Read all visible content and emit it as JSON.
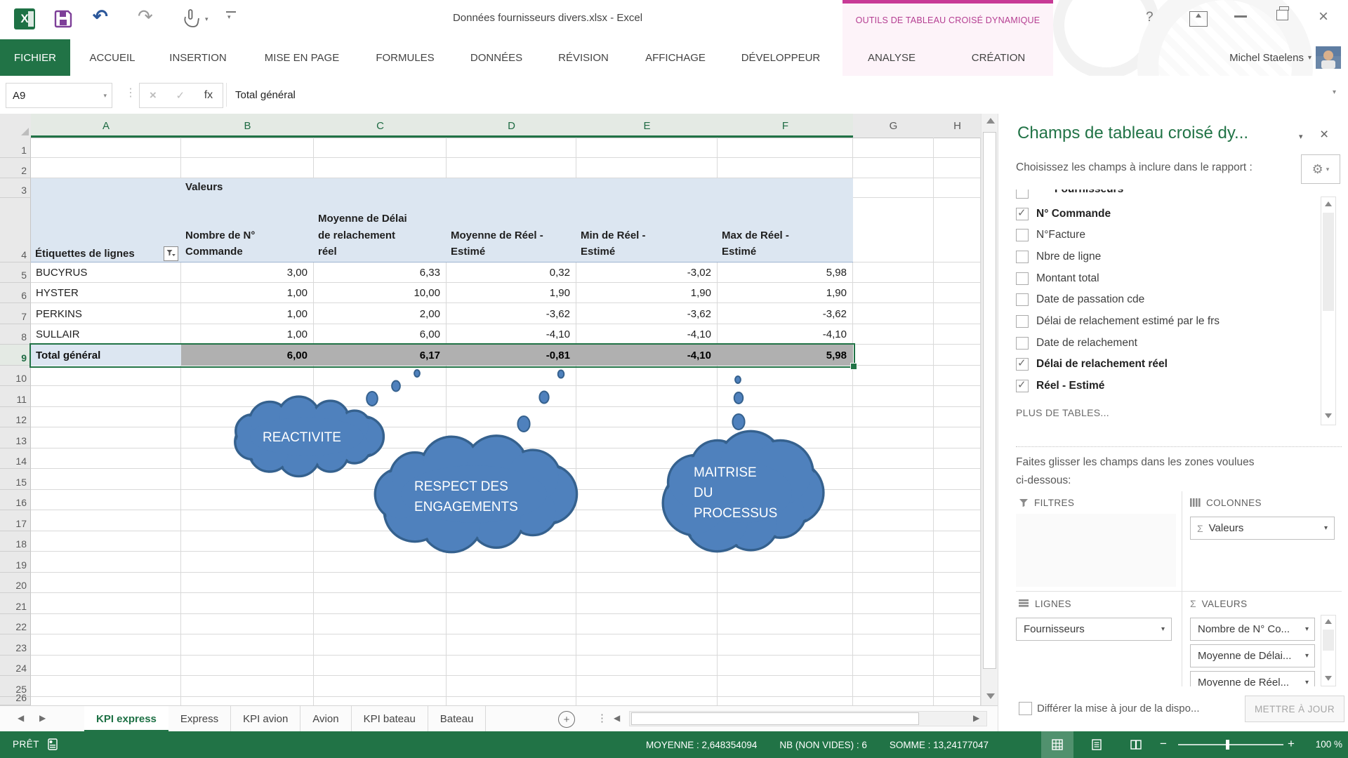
{
  "title_bar": {
    "title": "Données fournisseurs divers.xlsx - Excel",
    "help": "?",
    "user_name": "Michel Staelens"
  },
  "ribbon": {
    "file_tab": "FICHIER",
    "tabs": [
      "ACCUEIL",
      "INSERTION",
      "MISE EN PAGE",
      "FORMULES",
      "DONNÉES",
      "RÉVISION",
      "AFFICHAGE",
      "DÉVELOPPEUR"
    ],
    "contextual_title": "OUTILS DE TABLEAU CROISÉ DYNAMIQUE",
    "contextual_tabs": [
      "ANALYSE",
      "CRÉATION"
    ]
  },
  "formula_bar": {
    "name_box": "A9",
    "fx": "fx",
    "value": "Total général"
  },
  "grid": {
    "columns": [
      "A",
      "B",
      "C",
      "D",
      "E",
      "F",
      "G",
      "H"
    ],
    "selected_columns": [
      "A",
      "B",
      "C",
      "D",
      "E",
      "F"
    ],
    "row_count": 26,
    "selected_row": 9
  },
  "pivot": {
    "values_caption": "Valeurs",
    "row_label_header": "Étiquettes de lignes",
    "column_headers": [
      "Nombre de N°\nCommande",
      "Moyenne de Délai\nde relachement\nréel",
      "Moyenne de Réel -\nEstimé",
      "Min de Réel -\nEstimé",
      "Max de Réel -\nEstimé"
    ],
    "rows": [
      {
        "label": "BUCYRUS",
        "values": [
          "3,00",
          "6,33",
          "0,32",
          "-3,02",
          "5,98"
        ]
      },
      {
        "label": "HYSTER",
        "values": [
          "1,00",
          "10,00",
          "1,90",
          "1,90",
          "1,90"
        ]
      },
      {
        "label": "PERKINS",
        "values": [
          "1,00",
          "2,00",
          "-3,62",
          "-3,62",
          "-3,62"
        ]
      },
      {
        "label": "SULLAIR",
        "values": [
          "1,00",
          "6,00",
          "-4,10",
          "-4,10",
          "-4,10"
        ]
      }
    ],
    "total_row": {
      "label": "Total général",
      "values": [
        "6,00",
        "6,17",
        "-0,81",
        "-4,10",
        "5,98"
      ]
    }
  },
  "clouds": [
    {
      "lines": [
        "REACTIVITE"
      ]
    },
    {
      "lines": [
        "RESPECT DES",
        "ENGAGEMENTS"
      ]
    },
    {
      "lines": [
        "MAITRISE",
        "DU",
        "PROCESSUS"
      ]
    }
  ],
  "fields_panel": {
    "title": "Champs de tableau croisé dy...",
    "prompt": "Choisissez les champs à inclure dans le rapport :",
    "fields": [
      {
        "label": "Fournisseurs",
        "checked": true
      },
      {
        "label": "N° Commande",
        "checked": true
      },
      {
        "label": "N°Facture",
        "checked": false
      },
      {
        "label": "Nbre de ligne",
        "checked": false
      },
      {
        "label": "Montant total",
        "checked": false
      },
      {
        "label": "Date de passation cde",
        "checked": false
      },
      {
        "label": "Délai de relachement estimé par le frs",
        "checked": false
      },
      {
        "label": "Date de relachement",
        "checked": false
      },
      {
        "label": "Délai de relachement  réel",
        "checked": true
      },
      {
        "label": "Réel - Estimé",
        "checked": true
      }
    ],
    "more_tables": "PLUS DE TABLES...",
    "drag_hint_line1": "Faites glisser les champs dans les zones voulues",
    "drag_hint_line2": "ci-dessous:",
    "zones": {
      "filtres": {
        "label": "FILTRES",
        "items": []
      },
      "colonnes": {
        "label": "COLONNES",
        "items": [
          "Valeurs"
        ]
      },
      "lignes": {
        "label": "LIGNES",
        "items": [
          "Fournisseurs"
        ]
      },
      "valeurs": {
        "label": "VALEURS",
        "items": [
          "Nombre de N° Co...",
          "Moyenne de Délai...",
          "Moyenne de Réel..."
        ]
      }
    },
    "defer_label": "Différer la mise à jour de la dispo...",
    "update_button": "METTRE À JOUR"
  },
  "sheet_tabs": {
    "tabs": [
      "KPI express",
      "Express",
      "KPI avion",
      "Avion",
      "KPI bateau",
      "Bateau"
    ],
    "active": "KPI express"
  },
  "status_bar": {
    "mode": "PRÊT",
    "stats": [
      "MOYENNE : 2,648354094",
      "NB (NON VIDES) : 6",
      "SOMME : 13,24177047"
    ],
    "zoom": "100 %"
  },
  "colors": {
    "accent_green": "#217346",
    "contextual_pink": "#c83a96",
    "pivot_header_blue": "#dce6f1",
    "cloud_blue": "#4f81bd",
    "cloud_border": "#35618e",
    "selection_gray": "#b0b0b0"
  }
}
